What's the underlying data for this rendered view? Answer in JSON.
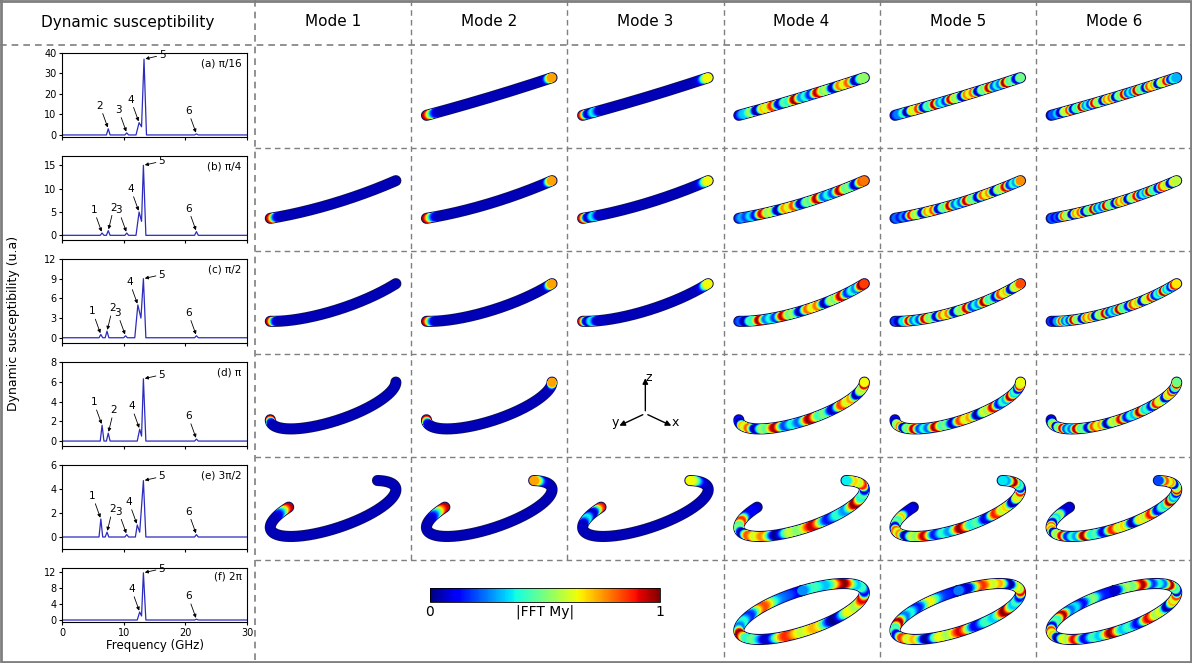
{
  "header": [
    "Dynamic susceptibility",
    "Mode 1",
    "Mode 2",
    "Mode 3",
    "Mode 4",
    "Mode 5",
    "Mode 6"
  ],
  "y_label": "Dynamic susceptibility (u.a)",
  "x_label": "Frequency (GHz)",
  "chart_data": [
    {
      "type": "line",
      "title": "(a) π/16",
      "color": "#2b2bc0",
      "x": [
        0,
        7.2,
        7.5,
        7.8,
        10.2,
        10.5,
        10.8,
        12.0,
        12.5,
        12.9,
        13.3,
        13.7,
        21.5,
        21.8,
        22.1,
        30
      ],
      "values": [
        0,
        0,
        3,
        0,
        0,
        1,
        0,
        0,
        6,
        4,
        37,
        0,
        0,
        0.5,
        0,
        0
      ],
      "xlim": [
        0,
        30
      ],
      "xticks": [
        0,
        10,
        20,
        30
      ],
      "ylim": [
        -1,
        40
      ],
      "yticks": [
        0,
        10,
        20,
        30,
        40
      ],
      "tick_labels": "y",
      "annotations": [
        {
          "text": "2",
          "x": 7.5,
          "y": 3
        },
        {
          "text": "3",
          "x": 10.5,
          "y": 1
        },
        {
          "text": "4",
          "x": 12.5,
          "y": 6
        },
        {
          "text": "5",
          "x": 13.3,
          "y": 37
        },
        {
          "text": "6",
          "x": 21.8,
          "y": 0.5
        }
      ]
    },
    {
      "type": "line",
      "title": "(b) π/4",
      "color": "#2b2bc0",
      "x": [
        0,
        6.2,
        6.5,
        6.8,
        7.2,
        7.5,
        7.8,
        10.2,
        10.5,
        10.8,
        12.0,
        12.5,
        12.9,
        13.2,
        13.6,
        21.5,
        21.8,
        22.1,
        30
      ],
      "values": [
        0,
        0,
        0.5,
        0,
        0,
        1,
        0,
        0,
        0.5,
        0,
        0,
        5,
        3,
        15,
        0,
        0,
        0.8,
        0,
        0
      ],
      "xlim": [
        0,
        30
      ],
      "xticks": [
        0,
        10,
        20,
        30
      ],
      "ylim": [
        -1,
        17
      ],
      "yticks": [
        0,
        5,
        10,
        15
      ],
      "tick_labels": "y",
      "annotations": [
        {
          "text": "1",
          "x": 6.5,
          "y": 0.5
        },
        {
          "text": "2",
          "x": 7.5,
          "y": 1
        },
        {
          "text": "3",
          "x": 10.5,
          "y": 0.5
        },
        {
          "text": "4",
          "x": 12.5,
          "y": 5
        },
        {
          "text": "5",
          "x": 13.2,
          "y": 15
        },
        {
          "text": "6",
          "x": 21.8,
          "y": 0.8
        }
      ]
    },
    {
      "type": "line",
      "title": "(c) π/2",
      "color": "#2b2bc0",
      "x": [
        0,
        6.0,
        6.3,
        6.6,
        7.0,
        7.3,
        7.6,
        10.0,
        10.3,
        10.6,
        11.8,
        12.3,
        12.8,
        13.2,
        13.6,
        21.5,
        21.8,
        22.1,
        30
      ],
      "values": [
        0,
        0,
        0.5,
        0,
        0,
        1,
        0,
        0,
        0.3,
        0,
        0,
        5,
        3,
        9,
        0,
        0,
        0.3,
        0,
        0
      ],
      "xlim": [
        0,
        30
      ],
      "xticks": [
        0,
        10,
        20,
        30
      ],
      "ylim": [
        -0.8,
        12
      ],
      "yticks": [
        0,
        3,
        6,
        9,
        12
      ],
      "tick_labels": "y",
      "annotations": [
        {
          "text": "1",
          "x": 6.3,
          "y": 0.5
        },
        {
          "text": "2",
          "x": 7.3,
          "y": 1
        },
        {
          "text": "3",
          "x": 10.3,
          "y": 0.3
        },
        {
          "text": "4",
          "x": 12.3,
          "y": 5
        },
        {
          "text": "5",
          "x": 13.2,
          "y": 9
        },
        {
          "text": "6",
          "x": 21.8,
          "y": 0.3
        }
      ]
    },
    {
      "type": "line",
      "title": "(d) π",
      "color": "#2b2bc0",
      "x": [
        0,
        6.2,
        6.5,
        6.8,
        7.2,
        7.5,
        7.8,
        12.2,
        12.6,
        12.9,
        13.2,
        13.6,
        21.5,
        21.8,
        22.1,
        30
      ],
      "values": [
        0,
        0,
        1.6,
        0,
        0,
        0.8,
        0,
        0,
        1.2,
        0.5,
        6.3,
        0,
        0,
        0.2,
        0,
        0
      ],
      "xlim": [
        0,
        30
      ],
      "xticks": [
        0,
        10,
        20,
        30
      ],
      "ylim": [
        -0.5,
        8
      ],
      "yticks": [
        0,
        2,
        4,
        6,
        8
      ],
      "tick_labels": "y",
      "annotations": [
        {
          "text": "1",
          "x": 6.5,
          "y": 1.6
        },
        {
          "text": "2",
          "x": 7.5,
          "y": 0.8
        },
        {
          "text": "4",
          "x": 12.6,
          "y": 1.2
        },
        {
          "text": "5",
          "x": 13.2,
          "y": 6.3
        },
        {
          "text": "6",
          "x": 21.8,
          "y": 0.2
        }
      ]
    },
    {
      "type": "line",
      "title": "(e) 3π/2",
      "color": "#2b2bc0",
      "x": [
        0,
        6.0,
        6.3,
        6.6,
        7.0,
        7.3,
        7.6,
        10.2,
        10.5,
        10.8,
        11.9,
        12.2,
        12.6,
        13.2,
        13.6,
        21.5,
        21.8,
        22.1,
        30
      ],
      "values": [
        0,
        0,
        1.5,
        0,
        0,
        0.4,
        0,
        0,
        0.2,
        0,
        0,
        1.0,
        0.4,
        4.7,
        0,
        0,
        0.2,
        0,
        0
      ],
      "xlim": [
        0,
        30
      ],
      "xticks": [
        0,
        10,
        20,
        30
      ],
      "ylim": [
        -1,
        6
      ],
      "yticks": [
        0,
        2,
        4,
        6
      ],
      "tick_labels": "y",
      "annotations": [
        {
          "text": "1",
          "x": 6.3,
          "y": 1.5
        },
        {
          "text": "2",
          "x": 7.3,
          "y": 0.4
        },
        {
          "text": "3",
          "x": 10.5,
          "y": 0.2
        },
        {
          "text": "4",
          "x": 12.2,
          "y": 1.0
        },
        {
          "text": "5",
          "x": 13.2,
          "y": 4.7
        },
        {
          "text": "6",
          "x": 21.8,
          "y": 0.2
        }
      ]
    },
    {
      "type": "line",
      "title": "(f) 2π",
      "color": "#2b2bc0",
      "x": [
        0,
        12.2,
        12.6,
        12.9,
        13.2,
        13.6,
        21.5,
        21.8,
        22.1,
        30
      ],
      "values": [
        0,
        0,
        2,
        1,
        11.8,
        0,
        0,
        0.2,
        0,
        0
      ],
      "xlim": [
        0,
        30
      ],
      "xticks": [
        0,
        10,
        20,
        30
      ],
      "ylim": [
        -0.5,
        13
      ],
      "yticks": [
        0,
        4,
        8,
        12
      ],
      "annotations": [
        {
          "text": "4",
          "x": 12.6,
          "y": 2
        },
        {
          "text": "5",
          "x": 13.2,
          "y": 11.8
        },
        {
          "text": "6",
          "x": 21.8,
          "y": 0.2
        }
      ]
    }
  ],
  "mode_cells": [
    [
      2,
      3,
      4,
      5,
      6
    ],
    [
      1,
      2,
      3,
      4,
      5,
      6
    ],
    [
      1,
      2,
      3,
      4,
      5,
      6
    ],
    [
      1,
      2,
      4,
      5,
      6
    ],
    [
      1,
      2,
      3,
      4,
      5,
      6
    ],
    [
      4,
      5,
      6
    ]
  ],
  "colorbar": {
    "label": "|FFT My|",
    "range": [
      0,
      1
    ],
    "ticks": [
      0,
      1
    ]
  },
  "axes_triad": [
    "x",
    "y",
    "z"
  ]
}
